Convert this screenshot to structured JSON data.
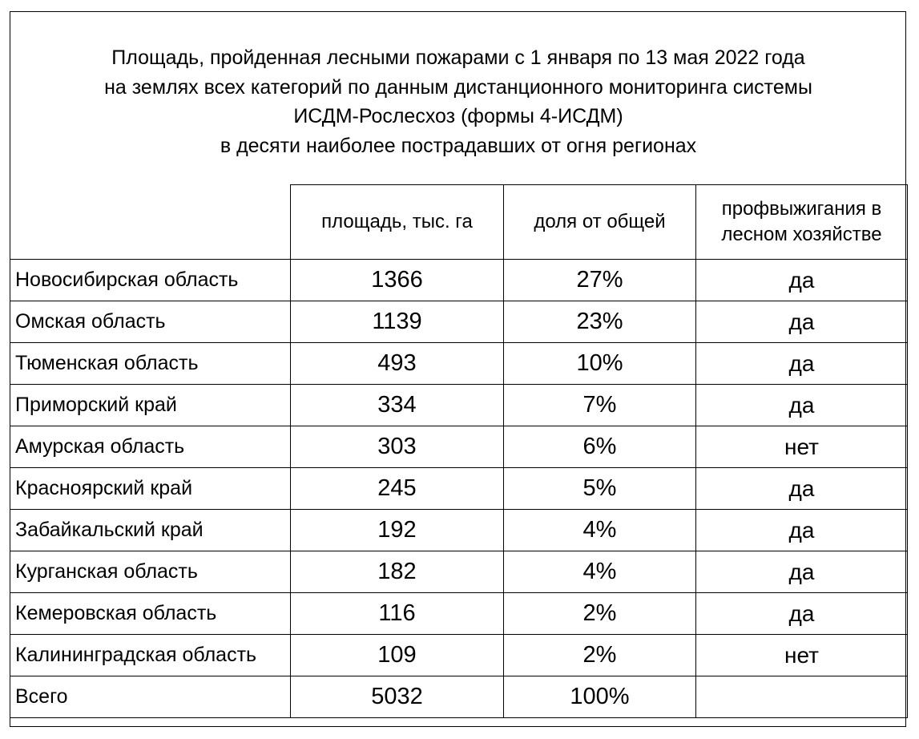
{
  "title": {
    "line1": "Площадь, пройденная лесными пожарами с 1 января по 13 мая 2022 года",
    "line2": "на землях всех категорий по данным дистанционного мониторинга системы",
    "line3": "ИСДМ-Рослесхоз (формы 4-ИСДМ)",
    "line4": "в десяти наиболее пострадавших от огня регионах"
  },
  "columns": {
    "area": "площадь, тыс. га",
    "share": "доля от общей",
    "burn_line1": "профвыжигания в",
    "burn_line2": "лесном хозяйстве"
  },
  "rows": [
    {
      "region": "Новосибирская область",
      "area": "1366",
      "share": "27%",
      "burn": "да"
    },
    {
      "region": "Омская область",
      "area": "1139",
      "share": "23%",
      "burn": "да"
    },
    {
      "region": "Тюменская область",
      "area": "493",
      "share": "10%",
      "burn": "да"
    },
    {
      "region": "Приморский край",
      "area": "334",
      "share": "7%",
      "burn": "да"
    },
    {
      "region": "Амурская область",
      "area": "303",
      "share": "6%",
      "burn": "нет"
    },
    {
      "region": "Красноярский край",
      "area": "245",
      "share": "5%",
      "burn": "да"
    },
    {
      "region": "Забайкальский край",
      "area": "192",
      "share": "4%",
      "burn": "да"
    },
    {
      "region": "Курганская область",
      "area": "182",
      "share": "4%",
      "burn": "да"
    },
    {
      "region": "Кемеровская область",
      "area": "116",
      "share": "2%",
      "burn": "да"
    },
    {
      "region": "Калининградская область",
      "area": "109",
      "share": "2%",
      "burn": "нет"
    }
  ],
  "total": {
    "label": "Всего",
    "area": "5032",
    "share": "100%",
    "burn": ""
  }
}
